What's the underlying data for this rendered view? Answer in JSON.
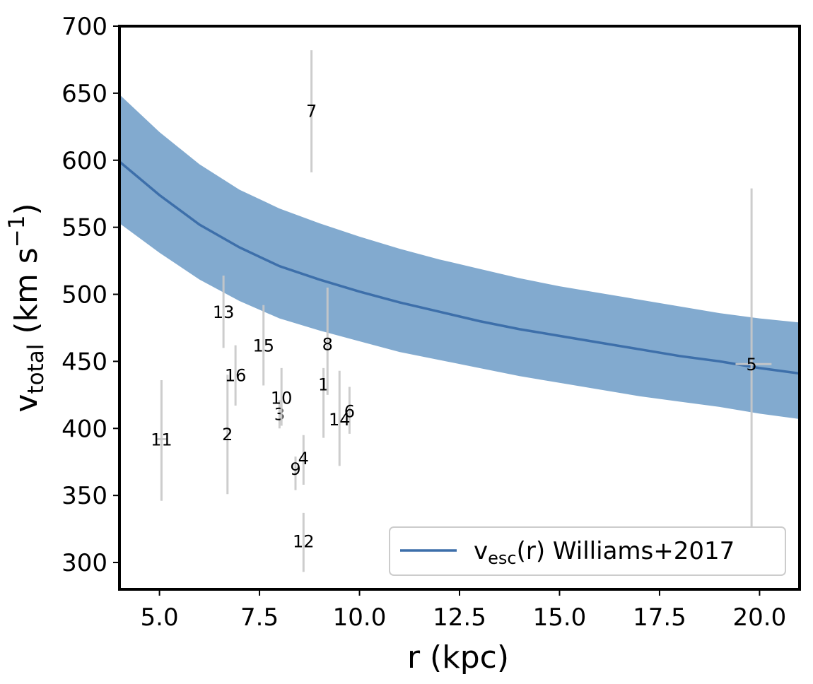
{
  "chart_data": {
    "type": "scatter",
    "xlabel": "r (kpc)",
    "ylabel": {
      "main": "v",
      "sub": "total",
      "units_pre": " (km s",
      "units_sup": "−1",
      "units_post": ")"
    },
    "xlim": [
      4.0,
      21.0
    ],
    "ylim": [
      280,
      700
    ],
    "xticks": [
      5.0,
      7.5,
      10.0,
      12.5,
      15.0,
      17.5,
      20.0
    ],
    "xtick_labels": [
      "5.0",
      "7.5",
      "10.0",
      "12.5",
      "15.0",
      "17.5",
      "20.0"
    ],
    "yticks": [
      300,
      350,
      400,
      450,
      500,
      550,
      600,
      650,
      700
    ],
    "ytick_labels": [
      "300",
      "350",
      "400",
      "450",
      "500",
      "550",
      "600",
      "650",
      "700"
    ],
    "grid": false,
    "colors": {
      "curve": "#3d6faa",
      "band": "#82aacf",
      "errorbar": "#c8c8c8"
    },
    "legend": {
      "position": "lower-right",
      "label_main": "v",
      "label_sub": "esc",
      "label_rest": "(r) Williams+2017"
    },
    "escape_curve": {
      "name": "v_esc(r) Williams+2017",
      "r": [
        4.0,
        5.0,
        6.0,
        7.0,
        8.0,
        9.0,
        10.0,
        11.0,
        12.0,
        13.0,
        14.0,
        15.0,
        16.0,
        17.0,
        18.0,
        19.0,
        20.0,
        21.0
      ],
      "v": [
        599,
        574,
        552,
        535,
        521,
        511,
        502,
        494,
        487,
        480,
        474,
        469,
        464,
        459,
        454,
        450,
        445,
        441
      ],
      "v_low": [
        553,
        531,
        511,
        495,
        482,
        473,
        465,
        457,
        451,
        445,
        439,
        434,
        429,
        424,
        420,
        416,
        411,
        407
      ],
      "v_high": [
        649,
        621,
        597,
        578,
        564,
        553,
        543,
        534,
        526,
        519,
        512,
        506,
        501,
        496,
        491,
        486,
        482,
        479
      ]
    },
    "points": [
      {
        "label": "1",
        "r": 9.1,
        "v": 433,
        "v_err": [
          393,
          445
        ]
      },
      {
        "label": "2",
        "r": 6.7,
        "v": 396,
        "v_err": [
          351,
          440
        ]
      },
      {
        "label": "3",
        "r": 8.0,
        "v": 411,
        "v_err": [
          400,
          421
        ]
      },
      {
        "label": "4",
        "r": 8.6,
        "v": 378,
        "v_err": [
          358,
          395
        ]
      },
      {
        "label": "5",
        "r": 19.8,
        "v": 448,
        "v_err": [
          326,
          579
        ],
        "r_err": [
          19.4,
          20.3
        ]
      },
      {
        "label": "6",
        "r": 9.75,
        "v": 413,
        "v_err": [
          396,
          431
        ]
      },
      {
        "label": "7",
        "r": 8.8,
        "v": 637,
        "v_err": [
          591,
          682
        ]
      },
      {
        "label": "8",
        "r": 9.2,
        "v": 463,
        "v_err": [
          425,
          505
        ]
      },
      {
        "label": "9",
        "r": 8.4,
        "v": 370,
        "v_err": [
          354,
          379
        ]
      },
      {
        "label": "10",
        "r": 8.05,
        "v": 423,
        "v_err": [
          402,
          445
        ]
      },
      {
        "label": "11",
        "r": 5.05,
        "v": 392,
        "v_err": [
          346,
          436
        ],
        "r_err": [
          4.9,
          5.2
        ]
      },
      {
        "label": "12",
        "r": 8.6,
        "v": 316,
        "v_err": [
          293,
          337
        ]
      },
      {
        "label": "13",
        "r": 6.6,
        "v": 487,
        "v_err": [
          460,
          514
        ]
      },
      {
        "label": "14",
        "r": 9.5,
        "v": 407,
        "v_err": [
          372,
          443
        ]
      },
      {
        "label": "15",
        "r": 7.6,
        "v": 462,
        "v_err": [
          432,
          492
        ]
      },
      {
        "label": "16",
        "r": 6.9,
        "v": 440,
        "v_err": [
          417,
          462
        ]
      }
    ]
  }
}
